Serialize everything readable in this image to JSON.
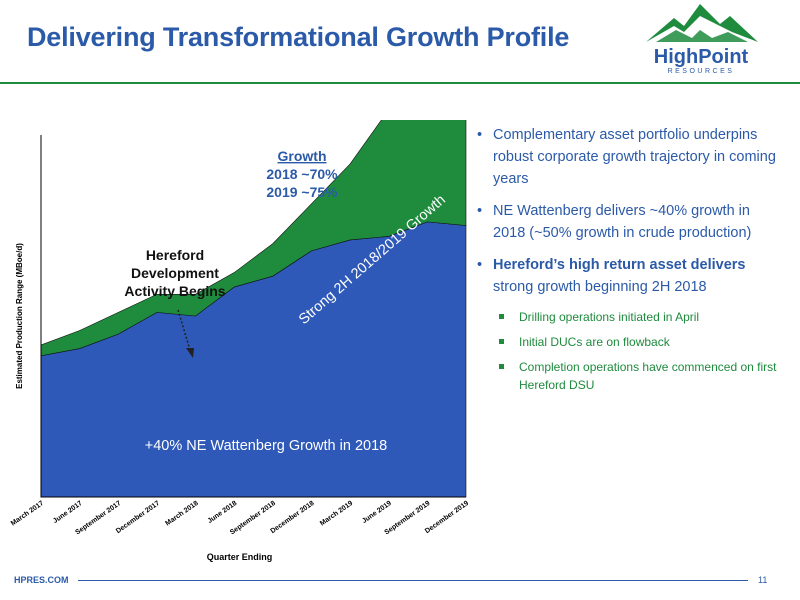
{
  "title": "Delivering Transformational Growth Profile",
  "logo": {
    "name": "HighPoint",
    "sub": "RESOURCES",
    "mountain_color": "#1e8b3d"
  },
  "chart_data": {
    "type": "area",
    "title": "",
    "xlabel": "Quarter Ending",
    "ylabel": "Estimated Production Range (MBoe/d)",
    "categories": [
      "March 2017",
      "June 2017",
      "September 2017",
      "December 2017",
      "March 2018",
      "June 2018",
      "September 2018",
      "December 2018",
      "March 2019",
      "June 2019",
      "September 2019",
      "December 2019"
    ],
    "ylim": [
      0,
      100
    ],
    "grid": false,
    "series": [
      {
        "name": "",
        "color": "#2e59b8",
        "values": [
          39,
          41,
          45,
          51,
          50,
          58,
          61,
          68,
          71,
          72,
          76,
          75
        ]
      },
      {
        "name": "",
        "color": "#1e8b3d",
        "values": [
          3,
          5,
          6,
          5,
          6,
          4,
          9,
          13,
          21,
          35,
          45,
          56
        ]
      }
    ],
    "annotations": {
      "growth_heading": "Growth",
      "growth_2018": "2018 ~70%",
      "growth_2019": "2019 ~75%",
      "hereford_line1": "Hereford",
      "hereford_line2": "Development",
      "hereford_line3": "Activity Begins",
      "strong_growth": "Strong 2H 2018/2019 Growth",
      "ne_growth": "+40% NE Wattenberg Growth in 2018"
    }
  },
  "bullets": [
    {
      "text": "Complementary asset portfolio underpins robust corporate growth trajectory in coming years",
      "bold": false
    },
    {
      "text": "NE Wattenberg delivers ~40% growth in 2018 (~50% growth in crude production)",
      "bold": false
    },
    {
      "text_bold": "Hereford’s high return asset delivers",
      "text_rest": "strong growth beginning 2H 2018",
      "bold": true
    }
  ],
  "sub_bullets": [
    "Drilling operations initiated in April",
    "Initial DUCs are on flowback",
    "Completion operations have commenced on first Hereford DSU"
  ],
  "footer": {
    "url": "HPRES.COM",
    "page": "11"
  }
}
